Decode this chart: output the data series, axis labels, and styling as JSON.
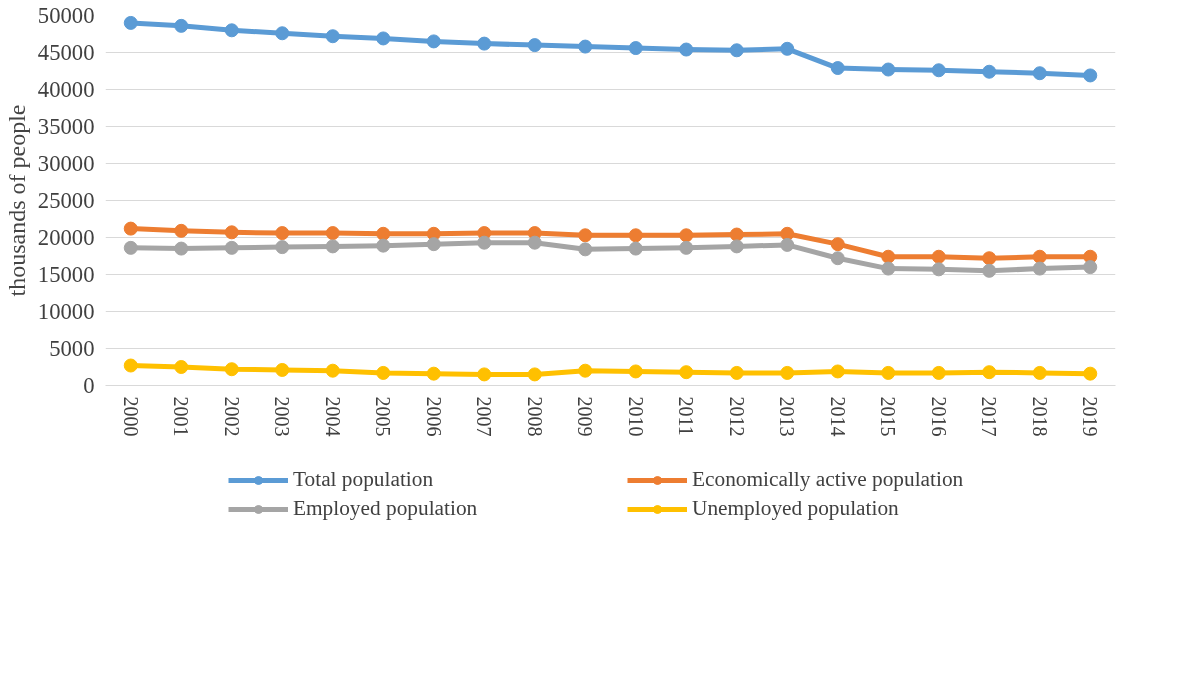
{
  "chart_data": {
    "type": "line",
    "ylabel": "thousands of people",
    "categories": [
      "2000",
      "2001",
      "2002",
      "2003",
      "2004",
      "2005",
      "2006",
      "2007",
      "2008",
      "2009",
      "2010",
      "2011",
      "2012",
      "2013",
      "2014",
      "2015",
      "2016",
      "2017",
      "2018",
      "2019"
    ],
    "series": [
      {
        "name": "Total population",
        "color": "#5b9bd5",
        "values": [
          49000,
          48600,
          48000,
          47600,
          47200,
          46900,
          46500,
          46200,
          46000,
          45800,
          45600,
          45400,
          45300,
          45500,
          42900,
          42700,
          42600,
          42400,
          42200,
          41900
        ]
      },
      {
        "name": "Economically active population",
        "color": "#ed7d31",
        "values": [
          21200,
          20900,
          20700,
          20600,
          20600,
          20500,
          20500,
          20600,
          20600,
          20300,
          20300,
          20300,
          20400,
          20500,
          19100,
          17400,
          17400,
          17200,
          17400,
          17400
        ]
      },
      {
        "name": "Employed population",
        "color": "#a5a5a5",
        "values": [
          18600,
          18500,
          18600,
          18700,
          18800,
          18900,
          19100,
          19300,
          19300,
          18400,
          18500,
          18600,
          18800,
          19000,
          17200,
          15800,
          15700,
          15500,
          15800,
          16000
        ]
      },
      {
        "name": "Unemployed population",
        "color": "#ffc000",
        "values": [
          2700,
          2500,
          2200,
          2100,
          2000,
          1700,
          1600,
          1500,
          1500,
          2000,
          1900,
          1800,
          1700,
          1700,
          1900,
          1700,
          1700,
          1800,
          1700,
          1600
        ]
      }
    ],
    "ylim": [
      0,
      50000
    ],
    "yticks": [
      0,
      5000,
      10000,
      15000,
      20000,
      25000,
      30000,
      35000,
      40000,
      45000,
      50000
    ],
    "grid": "y",
    "legend": "bottom",
    "marker": "circle",
    "line_style": "solid"
  }
}
